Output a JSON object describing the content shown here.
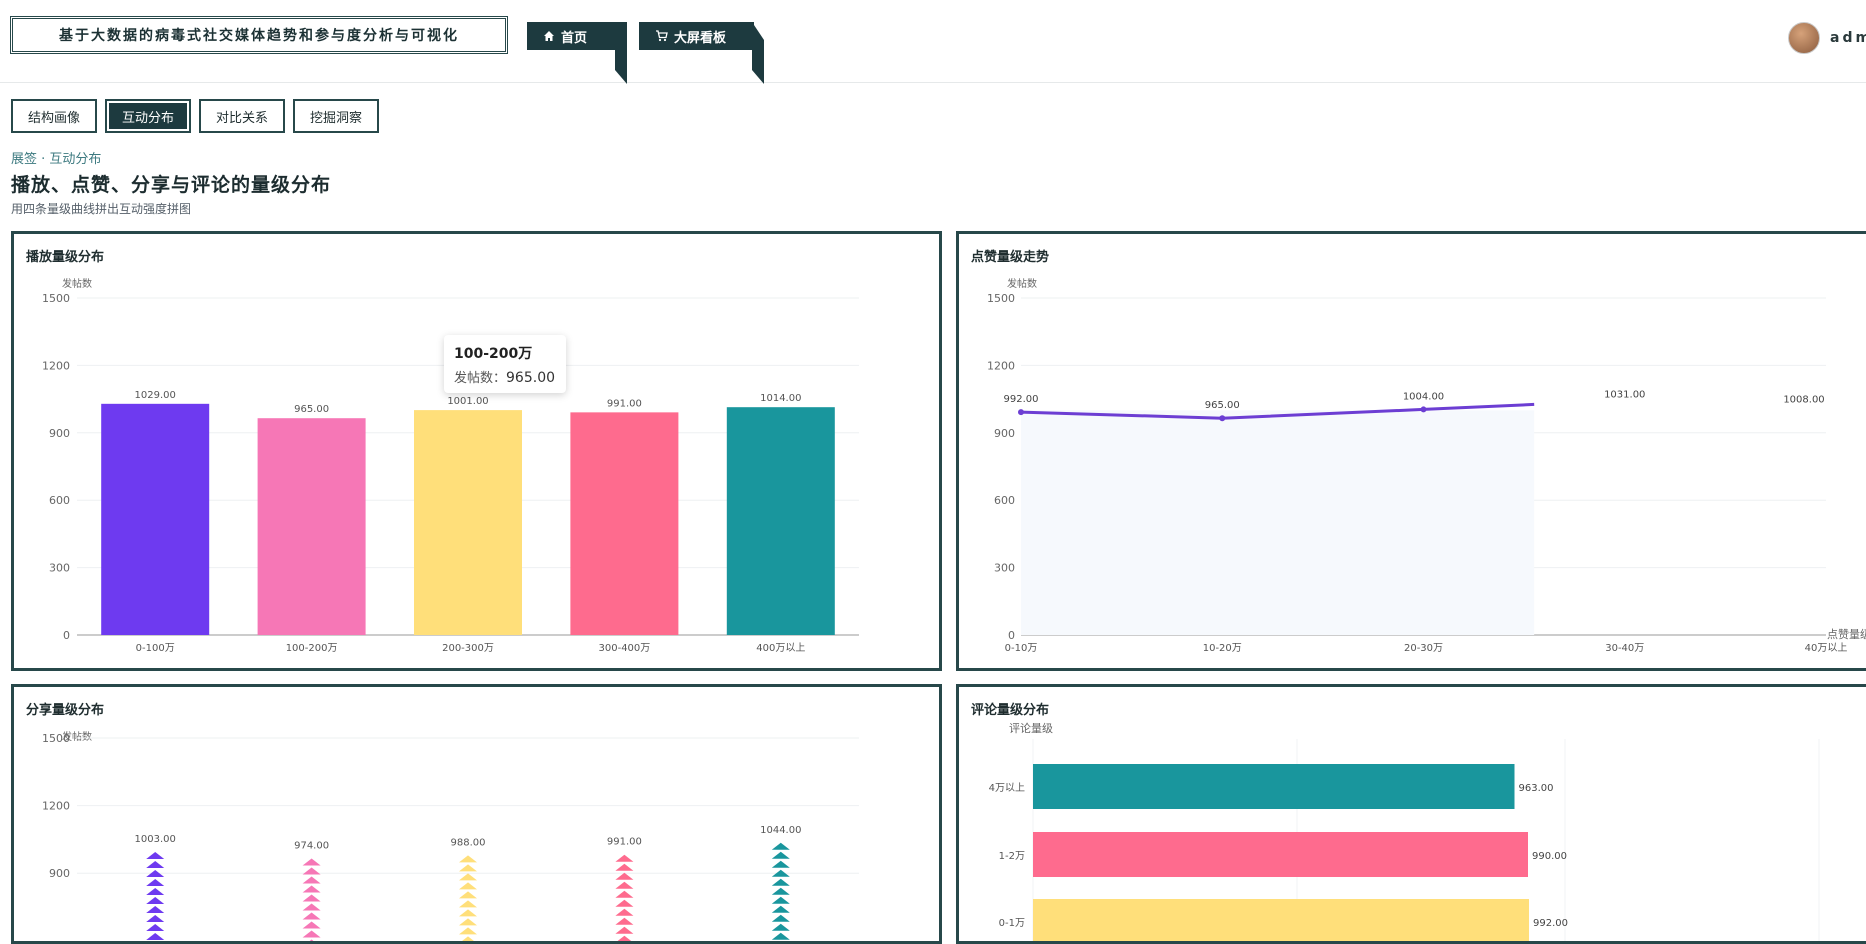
{
  "header": {
    "brand_title": "基于大数据的病毒式社交媒体趋势和参与度分析与可视化",
    "nav": [
      {
        "label": "首页",
        "icon": "home-icon"
      },
      {
        "label": "大屏看板",
        "icon": "cart-icon"
      }
    ],
    "user": {
      "name": "admin"
    }
  },
  "tabs": [
    {
      "label": "结构画像",
      "active": false
    },
    {
      "label": "互动分布",
      "active": true
    },
    {
      "label": "对比关系",
      "active": false
    },
    {
      "label": "挖掘洞察",
      "active": false
    }
  ],
  "page": {
    "breadcrumb": "展签 · 互动分布",
    "title": "播放、点赞、分享与评论的量级分布",
    "subtitle": "用四条量级曲线拼出互动强度拼图"
  },
  "colors": {
    "dark": "#1d3a3f",
    "purple": "#6e3af0",
    "pink": "#f677b6",
    "yellow": "#ffdf7a",
    "rose": "#fe6b8e",
    "teal": "#19969d",
    "line": "#6c3ed3"
  },
  "tooltip": {
    "title": "100-200万",
    "label": "发帖数：",
    "value": "965.00"
  },
  "chart_data": [
    {
      "type": "bar",
      "title": "播放量级分布",
      "ylabel": "发帖数",
      "xlabel": "",
      "ylim": [
        0,
        1500
      ],
      "yticks": [
        0,
        300,
        600,
        900,
        1200,
        1500
      ],
      "categories": [
        "0-100万",
        "100-200万",
        "200-300万",
        "300-400万",
        "400万以上"
      ],
      "values": [
        1029,
        965,
        1001,
        991,
        1014
      ],
      "value_labels": [
        "1029.00",
        "965.00",
        "1001.00",
        "991.00",
        "1014.00"
      ],
      "grid": true
    },
    {
      "type": "line",
      "title": "点赞量级走势",
      "ylabel": "发帖数",
      "xlabel": "点赞量级",
      "ylim": [
        0,
        1500
      ],
      "yticks": [
        0,
        300,
        600,
        900,
        1200,
        1500
      ],
      "categories": [
        "0-10万",
        "10-20万",
        "20-30万",
        "30-40万",
        "40万以上"
      ],
      "values": [
        992,
        965,
        1004,
        1031,
        1008
      ],
      "value_labels": [
        "992.00",
        "965.00",
        "1004.00",
        "1031.00",
        "1008.00"
      ],
      "grid": true
    },
    {
      "type": "bar",
      "title": "分享量级分布",
      "ylabel": "发帖数",
      "xlabel": "",
      "ylim": [
        0,
        1500
      ],
      "yticks": [
        900,
        1200,
        1500
      ],
      "categories": [
        "",
        "",
        "",
        "",
        ""
      ],
      "values": [
        1003,
        974,
        988,
        991,
        1044
      ],
      "value_labels": [
        "1003.00",
        "974.00",
        "988.00",
        "991.00",
        "1044.00"
      ],
      "grid": true
    },
    {
      "type": "bar",
      "title": "评论量级分布",
      "ylabel": "评论量级",
      "xlabel": "",
      "orientation": "horizontal",
      "categories": [
        "4万以上",
        "1-2万",
        "0-1万"
      ],
      "values": [
        963,
        990,
        992
      ],
      "value_labels": [
        "963.00",
        "990.00",
        "992.00"
      ],
      "grid": true
    }
  ]
}
